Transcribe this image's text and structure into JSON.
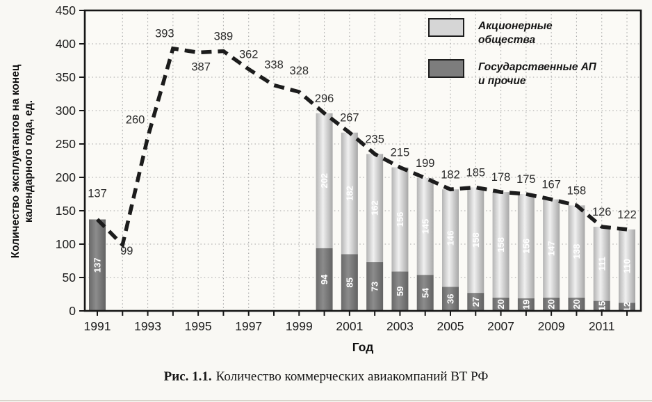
{
  "colors": {
    "page_bg": "#f9f8f4",
    "plot_bg": "#fbfaf6",
    "grid": "#a7a7a7",
    "axis": "#161616",
    "tick_text": "#1c1c1c",
    "point_label_text": "#2b2b2b",
    "bar_label_text": "#ffffff"
  },
  "figure": {
    "caption_label": "Рис. 1.1.",
    "caption_text": "Количество коммерческих авиакомпаний ВТ РФ"
  },
  "chart_data": {
    "type": "bar+line",
    "bar_mode": "stacked",
    "title": "",
    "xlabel": "Год",
    "ylabel": "Количество эксплуатантов на конец\nкалендарного года, ед.",
    "ylim": [
      0,
      450
    ],
    "ytick_step": 50,
    "grid": true,
    "legend_position": "top-right",
    "years": [
      1991,
      1992,
      1993,
      1994,
      1995,
      1996,
      1997,
      1998,
      1999,
      2000,
      2001,
      2002,
      2003,
      2004,
      2005,
      2006,
      2007,
      2008,
      2009,
      2010,
      2011,
      2012
    ],
    "xtick_labels": [
      1991,
      1993,
      1995,
      1997,
      1999,
      2001,
      2003,
      2005,
      2007,
      2009,
      2011
    ],
    "line": {
      "style": "dashed",
      "color": "#1c1c1c",
      "values": [
        137,
        99,
        260,
        393,
        387,
        389,
        362,
        338,
        328,
        296,
        267,
        235,
        215,
        199,
        182,
        185,
        178,
        175,
        167,
        158,
        126,
        122
      ]
    },
    "series": [
      {
        "name": "Акционерные общества",
        "legend_label": "Акционерные\nобщества",
        "stack": "top",
        "color": "#d6d6d6",
        "values": [
          null,
          null,
          null,
          null,
          null,
          null,
          null,
          null,
          null,
          202,
          182,
          162,
          156,
          145,
          146,
          158,
          158,
          156,
          147,
          138,
          111,
          110
        ]
      },
      {
        "name": "Государственные АП и прочие",
        "legend_label": "Государственные АП\nи прочие",
        "stack": "bottom",
        "color": "#7d7d7d",
        "values": [
          137,
          null,
          null,
          null,
          null,
          null,
          null,
          null,
          null,
          94,
          85,
          73,
          59,
          54,
          36,
          27,
          20,
          19,
          20,
          20,
          15,
          12
        ]
      }
    ],
    "point_label_offsets": {
      "1991": [
        0,
        -16
      ],
      "1992": [
        6,
        30
      ],
      "1993": [
        -18,
        -4
      ],
      "1994": [
        -12,
        0
      ],
      "1995": [
        4,
        42
      ],
      "1998": [
        0,
        -8
      ],
      "1999": [
        0,
        -9
      ]
    }
  }
}
